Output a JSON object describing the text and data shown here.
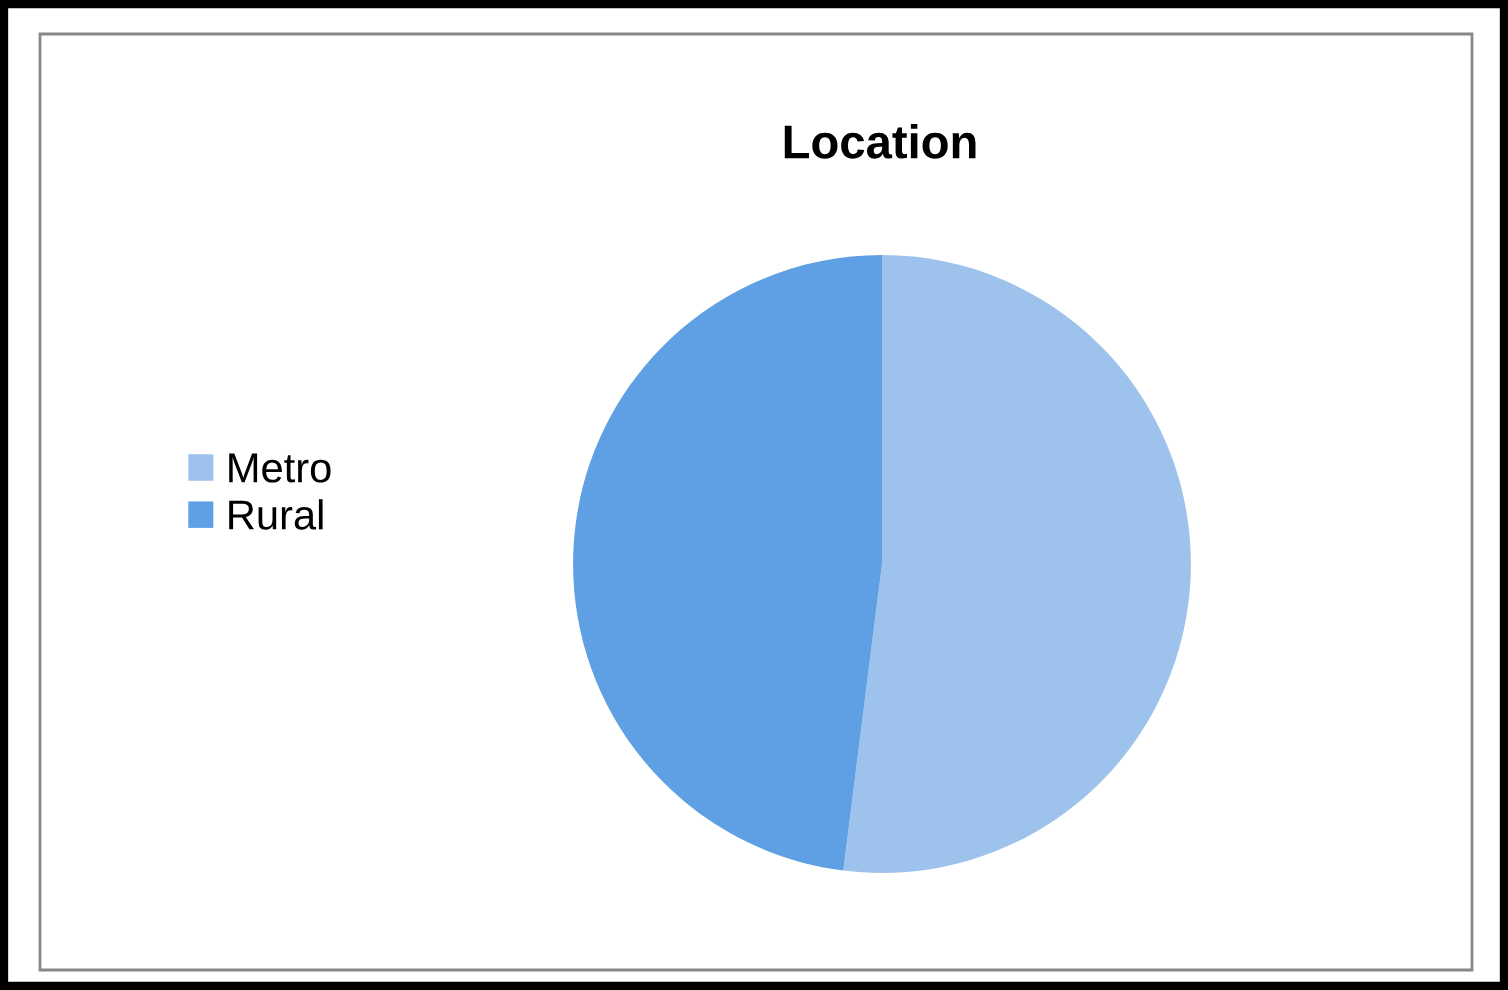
{
  "chart_data": {
    "type": "pie",
    "title": "Location",
    "categories": [
      "Metro",
      "Rural"
    ],
    "values": [
      52,
      48
    ],
    "colors": [
      "#9dc3ec",
      "#5f9fe3"
    ],
    "legend": "left"
  }
}
